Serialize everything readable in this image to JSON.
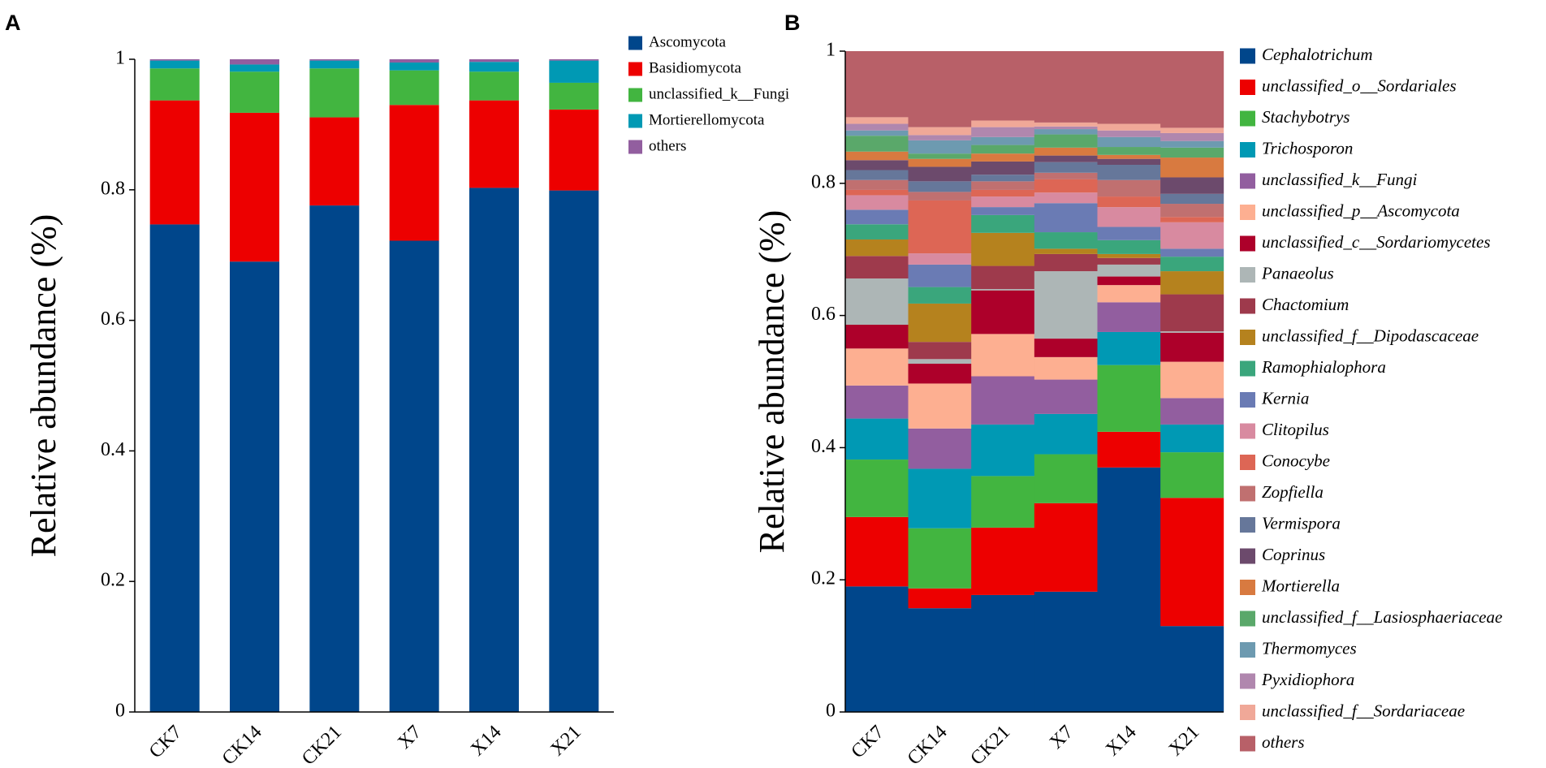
{
  "chart_data": [
    {
      "type": "bar",
      "stacked": true,
      "panel_label": "A",
      "y_label": "Relative abundance (%)",
      "categories": [
        "CK7",
        "CK14",
        "CK21",
        "X7",
        "X14",
        "X21"
      ],
      "ylim": [
        0,
        1
      ],
      "yticks": [
        0,
        0.2,
        0.4,
        0.6,
        0.8,
        1
      ],
      "legend_font_style": "normal",
      "series": [
        {
          "name": "Ascomycota",
          "color": "#00468b",
          "values": [
            0.747,
            0.69,
            0.776,
            0.722,
            0.803,
            0.799
          ]
        },
        {
          "name": "Basidiomycota",
          "color": "#ed0000",
          "values": [
            0.19,
            0.228,
            0.135,
            0.208,
            0.134,
            0.124
          ]
        },
        {
          "name": "unclassified_k__Fungi",
          "color": "#42b540",
          "values": [
            0.049,
            0.063,
            0.075,
            0.053,
            0.044,
            0.041
          ]
        },
        {
          "name": "Mortierellomycota",
          "color": "#0099b4",
          "values": [
            0.012,
            0.011,
            0.012,
            0.012,
            0.015,
            0.034
          ]
        },
        {
          "name": "others",
          "color": "#925e9f",
          "values": [
            0.002,
            0.008,
            0.002,
            0.005,
            0.004,
            0.002
          ]
        }
      ]
    },
    {
      "type": "bar",
      "stacked": true,
      "panel_label": "B",
      "y_label": "Relative abundance (%)",
      "categories": [
        "CK7",
        "CK14",
        "CK21",
        "X7",
        "X14",
        "X21"
      ],
      "ylim": [
        0,
        1
      ],
      "yticks": [
        0,
        0.2,
        0.4,
        0.6,
        0.8,
        1
      ],
      "legend_font_style": "italic",
      "series": [
        {
          "name": "Cephalotrichum",
          "color": "#00468b",
          "values": [
            0.19,
            0.157,
            0.177,
            0.182,
            0.37,
            0.13
          ]
        },
        {
          "name": "unclassified_o__Sordariales",
          "color": "#ed0000",
          "values": [
            0.105,
            0.03,
            0.102,
            0.134,
            0.054,
            0.194
          ]
        },
        {
          "name": "Stachybotrys",
          "color": "#42b540",
          "values": [
            0.087,
            0.091,
            0.078,
            0.074,
            0.101,
            0.069
          ]
        },
        {
          "name": "Trichosporon",
          "color": "#0099b4",
          "values": [
            0.062,
            0.09,
            0.078,
            0.061,
            0.05,
            0.042
          ]
        },
        {
          "name": "unclassified_k__Fungi",
          "color": "#925e9f",
          "values": [
            0.05,
            0.061,
            0.073,
            0.052,
            0.045,
            0.04
          ]
        },
        {
          "name": "unclassified_p__Ascomycota",
          "color": "#fdaf91",
          "values": [
            0.056,
            0.068,
            0.064,
            0.034,
            0.026,
            0.055
          ]
        },
        {
          "name": "unclassified_c__Sordariomycetes",
          "color": "#ad002a",
          "values": [
            0.036,
            0.03,
            0.066,
            0.028,
            0.013,
            0.044
          ]
        },
        {
          "name": "Panaeolus",
          "color": "#adb6b6",
          "values": [
            0.07,
            0.007,
            0.002,
            0.102,
            0.018,
            0.002
          ]
        },
        {
          "name": "Chactomium",
          "color": "#9e3a4c",
          "values": [
            0.034,
            0.026,
            0.035,
            0.026,
            0.01,
            0.056
          ]
        },
        {
          "name": "unclassified_f__Dipodascaceae",
          "color": "#b5821e",
          "values": [
            0.025,
            0.058,
            0.05,
            0.008,
            0.006,
            0.035
          ]
        },
        {
          "name": "Ramophialophora",
          "color": "#3aa67c",
          "values": [
            0.023,
            0.025,
            0.027,
            0.025,
            0.021,
            0.022
          ]
        },
        {
          "name": "Kernia",
          "color": "#6a7bb4",
          "values": [
            0.022,
            0.034,
            0.012,
            0.044,
            0.02,
            0.012
          ]
        },
        {
          "name": "Clitopilus",
          "color": "#d88aa0",
          "values": [
            0.022,
            0.017,
            0.016,
            0.016,
            0.03,
            0.04
          ]
        },
        {
          "name": "Conocybe",
          "color": "#dd6655",
          "values": [
            0.008,
            0.08,
            0.01,
            0.02,
            0.016,
            0.008
          ]
        },
        {
          "name": "Zopfiella",
          "color": "#c07070",
          "values": [
            0.015,
            0.013,
            0.013,
            0.01,
            0.025,
            0.02
          ]
        },
        {
          "name": "Vermispora",
          "color": "#66779a",
          "values": [
            0.015,
            0.016,
            0.01,
            0.016,
            0.023,
            0.015
          ]
        },
        {
          "name": "Coprinus",
          "color": "#6c4a6c",
          "values": [
            0.015,
            0.022,
            0.02,
            0.01,
            0.009,
            0.025
          ]
        },
        {
          "name": "Mortierella",
          "color": "#d87a40",
          "values": [
            0.013,
            0.012,
            0.012,
            0.012,
            0.006,
            0.03
          ]
        },
        {
          "name": "unclassified_f__Lasiosphaeriaceae",
          "color": "#5aa86a",
          "values": [
            0.024,
            0.008,
            0.013,
            0.02,
            0.012,
            0.015
          ]
        },
        {
          "name": "Thermomyces",
          "color": "#6d9ab0",
          "values": [
            0.008,
            0.02,
            0.012,
            0.008,
            0.015,
            0.01
          ]
        },
        {
          "name": "Pyxidiophora",
          "color": "#b087ae",
          "values": [
            0.01,
            0.008,
            0.015,
            0.004,
            0.01,
            0.012
          ]
        },
        {
          "name": "unclassified_f__Sordariaceae",
          "color": "#f0a898",
          "values": [
            0.01,
            0.012,
            0.01,
            0.006,
            0.01,
            0.008
          ]
        },
        {
          "name": "others",
          "color": "#b86068",
          "values": [
            0.1,
            0.115,
            0.105,
            0.108,
            0.11,
            0.116
          ]
        }
      ]
    }
  ]
}
